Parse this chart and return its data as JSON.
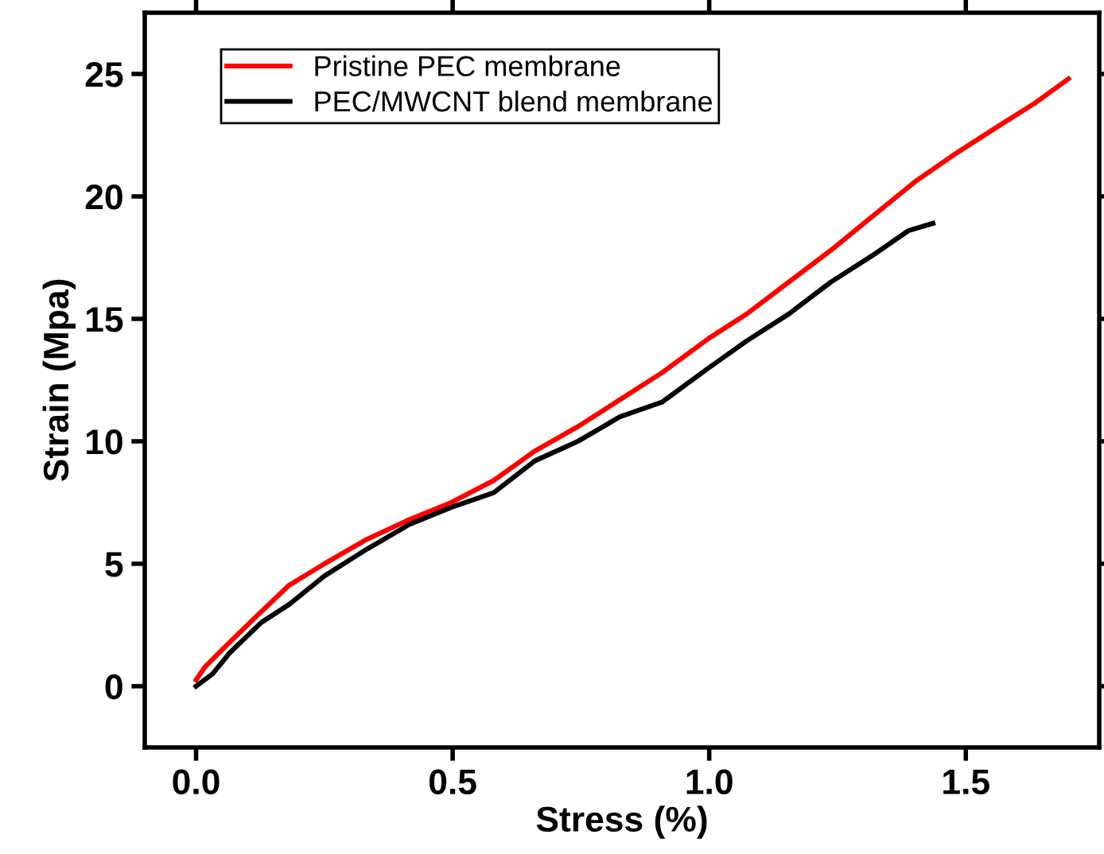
{
  "chart_data": {
    "type": "line",
    "xlabel": "Stress (%)",
    "ylabel": "Strain (Mpa)",
    "xlim": [
      -0.1,
      1.76
    ],
    "ylim": [
      -2.5,
      27.5
    ],
    "xticks": [
      {
        "value": 0,
        "label": "0.0"
      },
      0.5,
      {
        "value": 1,
        "label": "1.0"
      },
      1.5
    ],
    "yticks": [
      0,
      5,
      10,
      15,
      20,
      25
    ],
    "grid": false,
    "legend": "top left",
    "marker": "none",
    "line_style": "solid",
    "series": [
      {
        "name": "Pristine PEC membrane",
        "color": "#ff0000",
        "x": [
          0,
          0.018,
          0.059,
          0.12,
          0.18,
          0.25,
          0.333,
          0.415,
          0.497,
          0.58,
          0.66,
          0.744,
          0.826,
          0.908,
          0.999,
          1.073,
          1.155,
          1.237,
          1.319,
          1.401,
          1.484,
          1.566,
          1.634,
          1.7
        ],
        "values": [
          0.26,
          0.8,
          1.66,
          2.9,
          4.1,
          5.0,
          6.0,
          6.8,
          7.5,
          8.4,
          9.6,
          10.6,
          11.7,
          12.8,
          14.2,
          15.2,
          16.5,
          17.8,
          19.2,
          20.6,
          21.8,
          22.9,
          23.8,
          24.8
        ]
      },
      {
        "name": "PEC/MWCNT blend membrane",
        "color": "#000000",
        "x": [
          0,
          0.032,
          0.066,
          0.127,
          0.182,
          0.25,
          0.333,
          0.415,
          0.497,
          0.58,
          0.66,
          0.744,
          0.826,
          0.908,
          0.999,
          1.073,
          1.155,
          1.237,
          1.319,
          1.388,
          1.436
        ],
        "values": [
          0,
          0.5,
          1.37,
          2.6,
          3.35,
          4.5,
          5.6,
          6.6,
          7.3,
          7.9,
          9.2,
          10.0,
          11.0,
          11.6,
          13.0,
          14.1,
          15.2,
          16.5,
          17.6,
          18.6,
          18.9
        ]
      }
    ]
  }
}
